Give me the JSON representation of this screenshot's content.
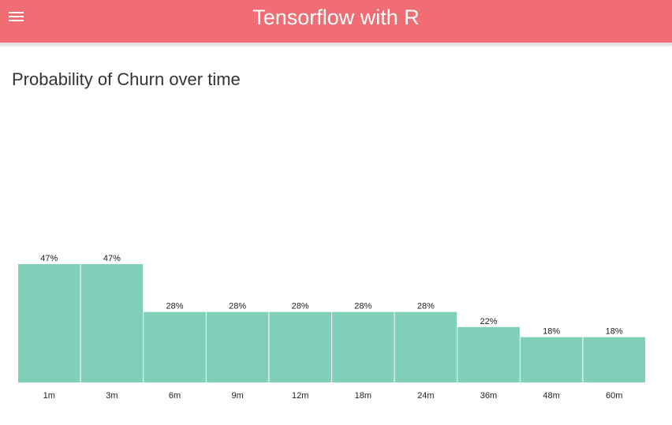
{
  "appbar": {
    "title": "Tensorflow with R",
    "menu_icon": "hamburger-menu-icon",
    "color": "#f06e73"
  },
  "page": {
    "title": "Probability of Churn over time"
  },
  "chart_data": {
    "type": "bar",
    "categories": [
      "1m",
      "3m",
      "6m",
      "9m",
      "12m",
      "18m",
      "24m",
      "36m",
      "48m",
      "60m"
    ],
    "values": [
      47,
      47,
      28,
      28,
      28,
      28,
      28,
      22,
      18,
      18
    ],
    "value_labels": [
      "47%",
      "47%",
      "28%",
      "28%",
      "28%",
      "28%",
      "28%",
      "22%",
      "18%",
      "18%"
    ],
    "ylim": [
      0,
      47
    ],
    "bar_color": "#80cfb8",
    "grid": false,
    "legend": false
  }
}
